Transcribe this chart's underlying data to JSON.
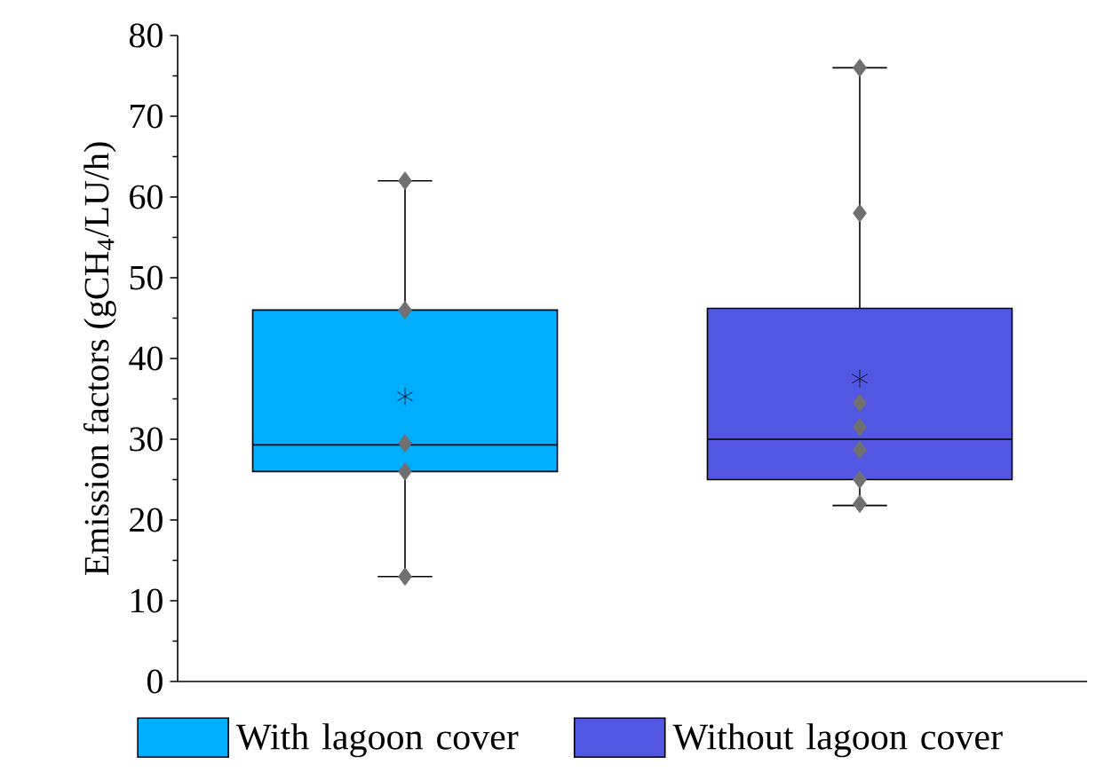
{
  "chart_data": {
    "type": "box",
    "ylabel": "Emission factors  (gCH$_{4}$/LU/h)",
    "categories": [
      "With lagoon cover",
      "Without lagoon cover"
    ],
    "colors": [
      "#00aeff",
      "#5257e3"
    ],
    "boxes": [
      {
        "low": 13,
        "q1": 26,
        "median": 29.3,
        "q3": 46,
        "high": 62,
        "mean": 35.3
      },
      {
        "low": 21.8,
        "q1": 25,
        "median": 30,
        "q3": 46.2,
        "high": 76,
        "mean": 37.5
      }
    ],
    "series": [
      {
        "type": "scatter",
        "marker": "diamond",
        "color": "#707070",
        "x": [
          "With lagoon cover",
          "With lagoon cover",
          "With lagoon cover",
          "With lagoon cover",
          "With lagoon cover",
          "Without lagoon cover",
          "Without lagoon cover",
          "Without lagoon cover",
          "Without lagoon cover",
          "Without lagoon cover",
          "Without lagoon cover",
          "Without lagoon cover"
        ],
        "values": [
          62,
          46,
          29.5,
          26,
          13,
          76,
          58,
          34.5,
          31.5,
          28.7,
          25,
          22
        ]
      }
    ],
    "ylim": [
      0,
      80
    ],
    "yticks": [
      0,
      10,
      20,
      30,
      40,
      50,
      60,
      70,
      80
    ],
    "grid": false
  }
}
